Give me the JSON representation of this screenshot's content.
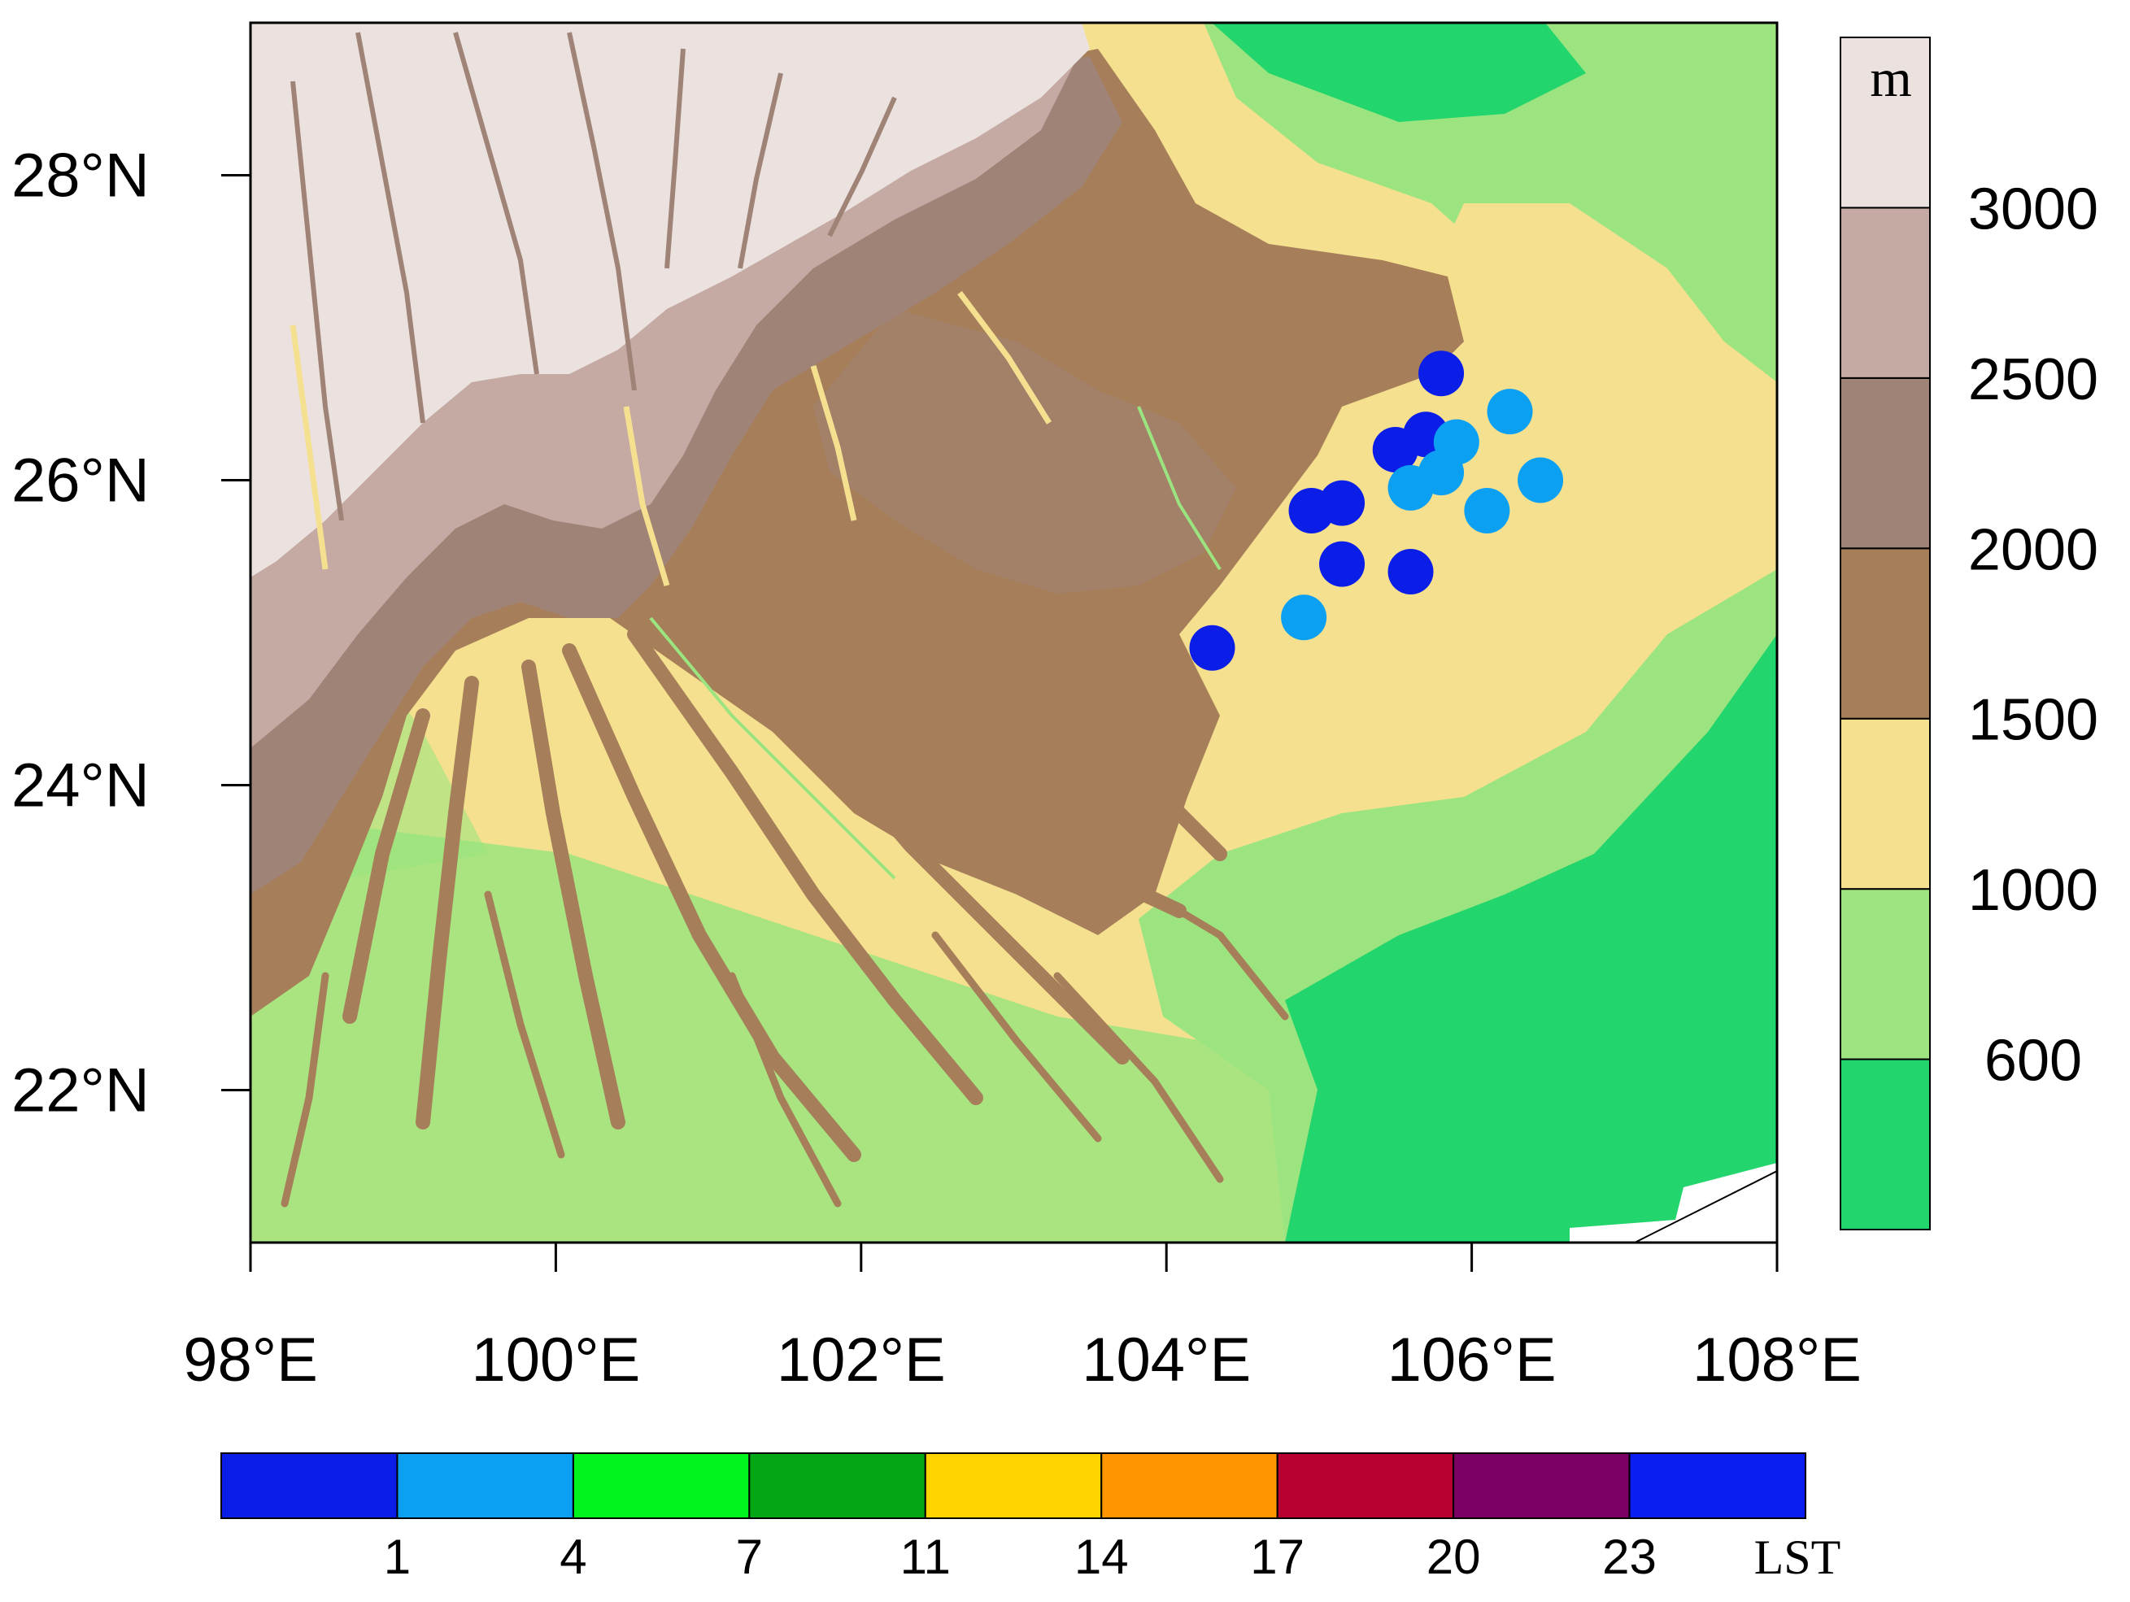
{
  "map": {
    "lon_ticks": [
      "98°E",
      "100°E",
      "102°E",
      "104°E",
      "106°E",
      "108°E"
    ],
    "lat_ticks": [
      "22°N",
      "24°N",
      "26°N",
      "28°N"
    ],
    "lon_range": [
      98,
      108
    ],
    "lat_range": [
      21,
      29
    ],
    "lon_values": [
      98,
      100,
      102,
      104,
      106,
      108
    ],
    "lat_values": [
      22,
      24,
      26,
      28
    ]
  },
  "elevation_legend": {
    "unit": "m",
    "levels": [
      "600",
      "1000",
      "1500",
      "2000",
      "2500",
      "3000"
    ],
    "colors": [
      "#22d56c",
      "#9be47f",
      "#f5e08f",
      "#a67f5a",
      "#a08377",
      "#c4aaa2",
      "#ebe2df"
    ]
  },
  "time_legend": {
    "unit": "LST",
    "ticks": [
      "1",
      "4",
      "7",
      "11",
      "14",
      "17",
      "20",
      "23"
    ],
    "colors": [
      "#0b1ee8",
      "#0ca0f2",
      "#00f41e",
      "#05a616",
      "#ffd400",
      "#ff9500",
      "#b80030",
      "#7a0066",
      "#0b1ef2"
    ]
  },
  "stations": [
    {
      "lon": 105.8,
      "lat": 26.7,
      "color": "#0b1ee8"
    },
    {
      "lon": 105.7,
      "lat": 26.3,
      "color": "#0b1ee8"
    },
    {
      "lon": 105.5,
      "lat": 26.2,
      "color": "#0b1ee8"
    },
    {
      "lon": 105.9,
      "lat": 26.25,
      "color": "#0ca0f2"
    },
    {
      "lon": 105.8,
      "lat": 26.05,
      "color": "#0ca0f2"
    },
    {
      "lon": 105.6,
      "lat": 25.95,
      "color": "#0ca0f2"
    },
    {
      "lon": 106.25,
      "lat": 26.45,
      "color": "#0ca0f2"
    },
    {
      "lon": 106.45,
      "lat": 26.0,
      "color": "#0ca0f2"
    },
    {
      "lon": 106.1,
      "lat": 25.8,
      "color": "#0ca0f2"
    },
    {
      "lon": 105.15,
      "lat": 25.85,
      "color": "#0b1ee8"
    },
    {
      "lon": 104.95,
      "lat": 25.8,
      "color": "#0b1ee8"
    },
    {
      "lon": 105.15,
      "lat": 25.45,
      "color": "#0b1ee8"
    },
    {
      "lon": 105.6,
      "lat": 25.4,
      "color": "#0b1ee8"
    },
    {
      "lon": 104.9,
      "lat": 25.1,
      "color": "#0ca0f2"
    },
    {
      "lon": 104.3,
      "lat": 24.9,
      "color": "#0b1ee8"
    }
  ]
}
